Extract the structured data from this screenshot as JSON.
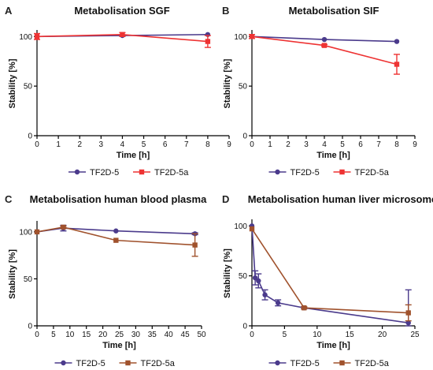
{
  "chart_data": [
    {
      "panel": "A",
      "type": "line",
      "title": "Metabolisation SGF",
      "xlabel": "Time [h]",
      "ylabel": "Stability [%]",
      "xlim": [
        0,
        9
      ],
      "ylim": [
        0,
        105
      ],
      "xticks": [
        0,
        1,
        2,
        3,
        4,
        5,
        6,
        7,
        8,
        9
      ],
      "yticks": [
        0,
        50,
        100
      ],
      "legend_position": "bottom",
      "series": [
        {
          "name": "TF2D-5",
          "color": "#4b3b8c",
          "marker": "circle",
          "x": [
            0,
            4,
            8
          ],
          "y": [
            100,
            101,
            102
          ],
          "err": [
            0,
            0,
            0
          ]
        },
        {
          "name": "TF2D-5a",
          "color": "#ee3333",
          "marker": "square",
          "x": [
            0,
            4,
            8
          ],
          "y": [
            100,
            102,
            95
          ],
          "err": [
            3,
            2,
            6
          ]
        }
      ]
    },
    {
      "panel": "B",
      "type": "line",
      "title": "Metabolisation SIF",
      "xlabel": "Time [h]",
      "ylabel": "Stability [%]",
      "xlim": [
        0,
        9
      ],
      "ylim": [
        0,
        105
      ],
      "xticks": [
        0,
        1,
        2,
        3,
        4,
        5,
        6,
        7,
        8,
        9
      ],
      "yticks": [
        0,
        50,
        100
      ],
      "legend_position": "bottom",
      "series": [
        {
          "name": "TF2D-5",
          "color": "#4b3b8c",
          "marker": "circle",
          "x": [
            0,
            4,
            8
          ],
          "y": [
            100,
            97,
            95
          ],
          "err": [
            0,
            0,
            0
          ]
        },
        {
          "name": "TF2D-5a",
          "color": "#ee3333",
          "marker": "square",
          "x": [
            0,
            4,
            8
          ],
          "y": [
            100,
            91,
            72
          ],
          "err": [
            2,
            1,
            10
          ]
        }
      ]
    },
    {
      "panel": "C",
      "type": "line",
      "title": "Metabolisation human blood plasma",
      "xlabel": "Time [h]",
      "ylabel": "Stability [%]",
      "xlim": [
        0,
        50
      ],
      "ylim": [
        0,
        110
      ],
      "xticks": [
        0,
        5,
        10,
        15,
        20,
        25,
        30,
        35,
        40,
        45,
        50
      ],
      "yticks": [
        0,
        50,
        100
      ],
      "legend_position": "bottom",
      "series": [
        {
          "name": "TF2D-5",
          "color": "#4b3b8c",
          "marker": "circle",
          "x": [
            0,
            8,
            24,
            48
          ],
          "y": [
            100,
            104,
            101,
            98
          ],
          "err": [
            0,
            3,
            0,
            1
          ]
        },
        {
          "name": "TF2D-5a",
          "color": "#a0522d",
          "marker": "square",
          "x": [
            0,
            8,
            24,
            48
          ],
          "y": [
            100,
            105,
            91,
            86
          ],
          "err": [
            0,
            1,
            0,
            12
          ]
        }
      ]
    },
    {
      "panel": "D",
      "type": "line",
      "title": "Metabolisation human liver microsome",
      "xlabel": "Time [h]",
      "ylabel": "Stability [%]",
      "xlim": [
        0,
        25
      ],
      "ylim": [
        0,
        105
      ],
      "xticks": [
        0,
        5,
        10,
        15,
        20,
        25
      ],
      "yticks": [
        0,
        50,
        100
      ],
      "legend_position": "bottom",
      "series": [
        {
          "name": "TF2D-5",
          "color": "#4b3b8c",
          "marker": "circle",
          "x": [
            0,
            0.5,
            1,
            2,
            4,
            8,
            24
          ],
          "y": [
            100,
            48,
            45,
            31,
            23,
            18,
            3
          ],
          "err": [
            0,
            7,
            7,
            5,
            3,
            1,
            33
          ]
        },
        {
          "name": "TF2D-5a",
          "color": "#a0522d",
          "marker": "square",
          "x": [
            0,
            8,
            24
          ],
          "y": [
            97,
            18,
            13
          ],
          "err": [
            0,
            1,
            8
          ]
        }
      ]
    }
  ]
}
